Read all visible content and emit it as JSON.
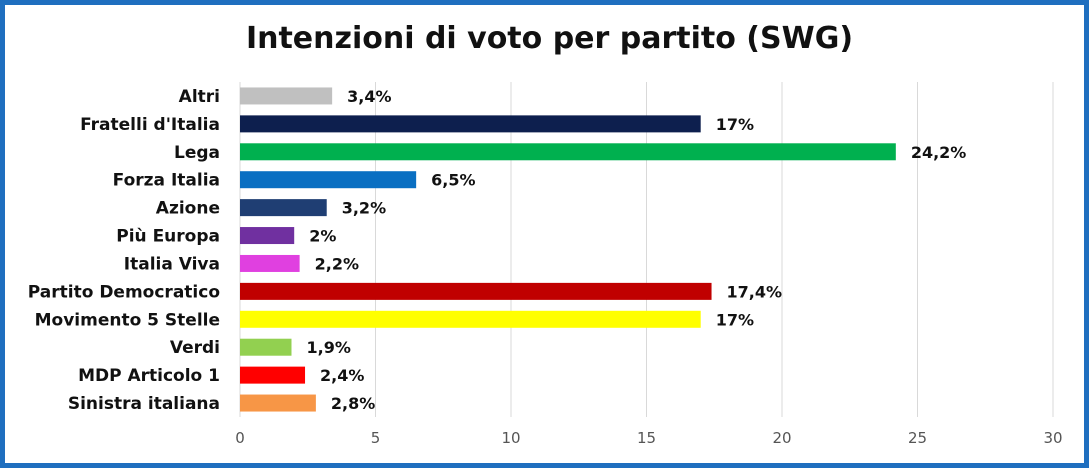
{
  "chart_data": {
    "type": "bar",
    "orientation": "horizontal",
    "title": "Intenzioni di voto per partito (SWG)",
    "xlabel": "",
    "ylabel": "",
    "xlim": [
      0,
      30
    ],
    "x_ticks": [
      0,
      5,
      10,
      15,
      20,
      25,
      30
    ],
    "grid": true,
    "legend": "none",
    "bars": [
      {
        "label": "Altri",
        "value": 3.4,
        "value_label": "3,4%",
        "color": "#c0c0c0"
      },
      {
        "label": "Fratelli d'Italia",
        "value": 17,
        "value_label": "17%",
        "color": "#0d1f4e"
      },
      {
        "label": "Lega",
        "value": 24.2,
        "value_label": "24,2%",
        "color": "#00b04f"
      },
      {
        "label": "Forza Italia",
        "value": 6.5,
        "value_label": "6,5%",
        "color": "#0a6fc2"
      },
      {
        "label": "Azione",
        "value": 3.2,
        "value_label": "3,2%",
        "color": "#1f3e73"
      },
      {
        "label": "Più Europa",
        "value": 2,
        "value_label": "2%",
        "color": "#7030a0"
      },
      {
        "label": "Italia Viva",
        "value": 2.2,
        "value_label": "2,2%",
        "color": "#e040e0"
      },
      {
        "label": "Partito Democratico",
        "value": 17.4,
        "value_label": "17,4%",
        "color": "#c00000"
      },
      {
        "label": "Movimento 5 Stelle",
        "value": 17,
        "value_label": "17%",
        "color": "#ffff00"
      },
      {
        "label": "Verdi",
        "value": 1.9,
        "value_label": "1,9%",
        "color": "#92d050"
      },
      {
        "label": "MDP Articolo 1",
        "value": 2.4,
        "value_label": "2,4%",
        "color": "#ff0000"
      },
      {
        "label": "Sinistra italiana",
        "value": 2.8,
        "value_label": "2,8%",
        "color": "#f79646"
      }
    ]
  }
}
